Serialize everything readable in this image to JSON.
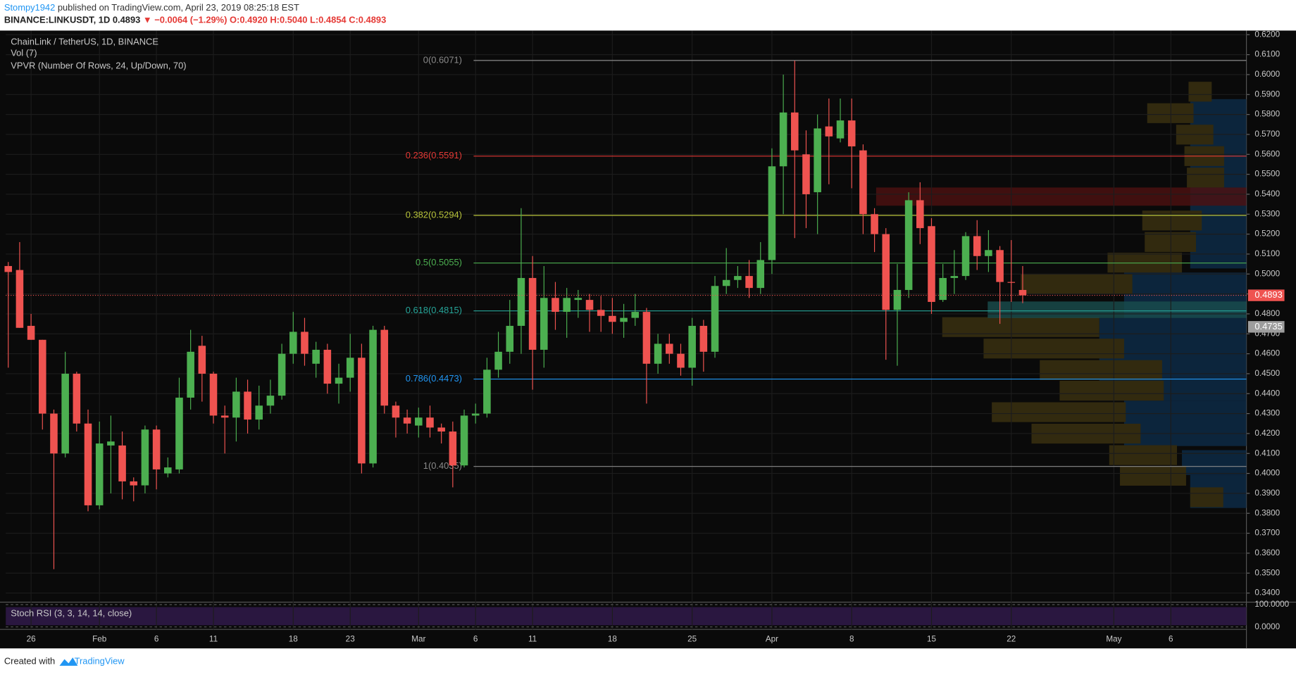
{
  "header": {
    "author": "Stompy1942",
    "published": "published on TradingView.com, April 23, 2019 08:25:18 EST",
    "symbol": "BINANCE:LINKUSDT, 1D",
    "last": "0.4893",
    "change": "▼ −0.0064 (−1.29%)",
    "open": "O:0.4920",
    "high": "H:0.5040",
    "low": "L:0.4854",
    "close": "C:0.4893"
  },
  "chart_data": {
    "type": "candlestick",
    "title": "ChainLink / TetherUS, 1D, BINANCE",
    "indicators": [
      "Vol (7)",
      "VPVR (Number Of Rows, 24, Up/Down, 70)"
    ],
    "up_color": "#4caf50",
    "down_color": "#ef5350",
    "grid": true,
    "categories": [
      null,
      null,
      "26",
      null,
      null,
      null,
      null,
      null,
      "Feb",
      null,
      null,
      null,
      null,
      "6",
      null,
      null,
      null,
      null,
      "11",
      null,
      null,
      null,
      null,
      null,
      null,
      "18",
      null,
      null,
      null,
      null,
      "23",
      null,
      null,
      null,
      null,
      null,
      "Mar",
      null,
      null,
      null,
      null,
      "6",
      null,
      null,
      null,
      null,
      "11",
      null,
      null,
      null,
      null,
      null,
      null,
      "18",
      null,
      null,
      null,
      null,
      null,
      null,
      "25",
      null,
      null,
      null,
      null,
      null,
      null,
      "Apr",
      null,
      null,
      null,
      null,
      null,
      null,
      "8",
      null,
      null,
      null,
      null,
      null,
      null,
      "15",
      null,
      null,
      null,
      null,
      null,
      null,
      "22",
      null,
      null,
      null,
      null,
      null,
      null,
      null,
      null,
      "May",
      null,
      null,
      null,
      null,
      "6",
      null,
      null,
      null,
      null,
      null
    ],
    "open": [
      0.504,
      0.502,
      0.474,
      0.467,
      0.43,
      0.41,
      0.45,
      0.425,
      0.384,
      0.414,
      0.414,
      0.396,
      0.394,
      0.422,
      0.4,
      0.402,
      0.438,
      0.464,
      0.45,
      0.429,
      0.428,
      0.441,
      0.427,
      0.434,
      0.439,
      0.46,
      0.471,
      0.455,
      0.462,
      0.445,
      0.448,
      0.458,
      0.405,
      0.472,
      0.434,
      0.428,
      0.424,
      0.428,
      0.423,
      0.421,
      0.404,
      0.429,
      0.43,
      0.452,
      0.461,
      0.474,
      0.498,
      0.462,
      0.488,
      0.481,
      0.487,
      0.487,
      0.482,
      0.479,
      0.476,
      0.478,
      0.481,
      0.455,
      0.465,
      0.46,
      0.453,
      0.474,
      0.461,
      0.494,
      0.497,
      0.499,
      0.493,
      0.507,
      0.554,
      0.581,
      0.56,
      0.541,
      0.574,
      0.568,
      0.577,
      0.562,
      0.53,
      0.52,
      0.482,
      0.492,
      0.537,
      0.524,
      0.487,
      0.498,
      0.499,
      0.519,
      0.509,
      0.512,
      0.496,
      0.492,
      null,
      null,
      null,
      null,
      null,
      null,
      null,
      null,
      null,
      null,
      null,
      null,
      null,
      null,
      null,
      null,
      null,
      null
    ],
    "high": [
      0.506,
      0.516,
      0.48,
      0.467,
      0.432,
      0.461,
      0.451,
      0.432,
      0.426,
      0.429,
      0.421,
      0.398,
      0.424,
      0.424,
      0.408,
      0.448,
      0.472,
      0.469,
      0.451,
      0.434,
      0.448,
      0.447,
      0.444,
      0.447,
      0.465,
      0.481,
      0.478,
      0.466,
      0.465,
      0.455,
      0.47,
      0.465,
      0.474,
      0.474,
      0.436,
      0.432,
      0.433,
      0.434,
      0.425,
      0.426,
      0.432,
      0.435,
      0.458,
      0.471,
      0.487,
      0.533,
      0.509,
      0.504,
      0.496,
      0.493,
      0.492,
      0.49,
      0.489,
      0.488,
      0.485,
      0.49,
      0.483,
      0.47,
      0.47,
      0.465,
      0.478,
      0.477,
      0.499,
      0.513,
      0.504,
      0.507,
      0.516,
      0.563,
      0.6,
      0.607,
      0.572,
      0.58,
      0.588,
      0.588,
      0.588,
      0.565,
      0.533,
      0.523,
      0.505,
      0.541,
      0.546,
      0.528,
      0.505,
      0.512,
      0.521,
      0.527,
      0.522,
      0.514,
      0.517,
      0.504,
      null,
      null,
      null,
      null,
      null,
      null,
      null,
      null,
      null,
      null,
      null,
      null,
      null,
      null,
      null,
      null,
      null,
      null
    ],
    "low": [
      0.453,
      0.473,
      0.467,
      0.422,
      0.352,
      0.408,
      0.421,
      0.381,
      0.382,
      0.39,
      0.387,
      0.386,
      0.39,
      0.392,
      0.398,
      0.4,
      0.432,
      0.436,
      0.425,
      0.41,
      0.416,
      0.42,
      0.422,
      0.43,
      0.437,
      0.455,
      0.454,
      0.448,
      0.44,
      0.435,
      0.441,
      0.4,
      0.403,
      0.43,
      0.418,
      0.42,
      0.418,
      0.418,
      0.415,
      0.393,
      0.403,
      0.425,
      0.428,
      0.448,
      0.455,
      0.46,
      0.442,
      0.453,
      0.472,
      0.468,
      0.478,
      0.471,
      0.471,
      0.47,
      0.468,
      0.474,
      0.435,
      0.45,
      0.455,
      0.449,
      0.444,
      0.451,
      0.458,
      0.49,
      0.493,
      0.488,
      0.49,
      0.5,
      0.53,
      0.518,
      0.523,
      0.52,
      0.545,
      0.566,
      0.543,
      0.52,
      0.511,
      0.457,
      0.454,
      0.488,
      0.515,
      0.48,
      0.486,
      0.49,
      0.497,
      0.502,
      0.501,
      0.475,
      0.486,
      0.4854,
      null,
      null,
      null,
      null,
      null,
      null,
      null,
      null,
      null,
      null,
      null,
      null,
      null,
      null,
      null,
      null,
      null,
      null
    ],
    "close": [
      0.501,
      0.473,
      0.467,
      0.43,
      0.41,
      0.45,
      0.425,
      0.384,
      0.415,
      0.416,
      0.396,
      0.394,
      0.422,
      0.402,
      0.403,
      0.438,
      0.461,
      0.45,
      0.429,
      0.428,
      0.441,
      0.427,
      0.434,
      0.439,
      0.46,
      0.471,
      0.46,
      0.462,
      0.445,
      0.448,
      0.458,
      0.405,
      0.472,
      0.434,
      0.428,
      0.425,
      0.428,
      0.423,
      0.421,
      0.404,
      0.429,
      0.43,
      0.452,
      0.461,
      0.474,
      0.498,
      0.462,
      0.488,
      0.481,
      0.488,
      0.488,
      0.482,
      0.479,
      0.476,
      0.478,
      0.481,
      0.455,
      0.465,
      0.46,
      0.453,
      0.474,
      0.461,
      0.494,
      0.497,
      0.499,
      0.493,
      0.507,
      0.554,
      0.581,
      0.562,
      0.54,
      0.573,
      0.569,
      0.577,
      0.564,
      0.53,
      0.52,
      0.482,
      0.492,
      0.537,
      0.523,
      0.486,
      0.498,
      0.499,
      0.519,
      0.509,
      0.512,
      0.496,
      0.4957,
      0.4893,
      null,
      null,
      null,
      null,
      null,
      null,
      null,
      null,
      null,
      null,
      null,
      null,
      null,
      null,
      null,
      null,
      null,
      null
    ],
    "ylim": [
      0.34,
      0.62
    ],
    "yticks": [
      {
        "value": 0.34,
        "label": "0.3400"
      },
      {
        "value": 0.35,
        "label": "0.3500"
      },
      {
        "value": 0.36,
        "label": "0.3600"
      },
      {
        "value": 0.37,
        "label": "0.3700"
      },
      {
        "value": 0.38,
        "label": "0.3800"
      },
      {
        "value": 0.39,
        "label": "0.3900"
      },
      {
        "value": 0.4,
        "label": "0.4000"
      },
      {
        "value": 0.41,
        "label": "0.4100"
      },
      {
        "value": 0.42,
        "label": "0.4200"
      },
      {
        "value": 0.43,
        "label": "0.4300"
      },
      {
        "value": 0.44,
        "label": "0.4400"
      },
      {
        "value": 0.45,
        "label": "0.4500"
      },
      {
        "value": 0.46,
        "label": "0.4600"
      },
      {
        "value": 0.47,
        "label": "0.4700"
      },
      {
        "value": 0.48,
        "label": "0.4800"
      },
      {
        "value": 0.49,
        "label": "0.4900"
      },
      {
        "value": 0.5,
        "label": "0.5000"
      },
      {
        "value": 0.51,
        "label": "0.5100"
      },
      {
        "value": 0.52,
        "label": "0.5200"
      },
      {
        "value": 0.53,
        "label": "0.5300"
      },
      {
        "value": 0.54,
        "label": "0.5400"
      },
      {
        "value": 0.55,
        "label": "0.5500"
      },
      {
        "value": 0.56,
        "label": "0.5600"
      },
      {
        "value": 0.57,
        "label": "0.5700"
      },
      {
        "value": 0.58,
        "label": "0.5800"
      },
      {
        "value": 0.59,
        "label": "0.5900"
      },
      {
        "value": 0.6,
        "label": "0.6000"
      },
      {
        "value": 0.61,
        "label": "0.6100"
      },
      {
        "value": 0.62,
        "label": "0.6200"
      }
    ],
    "last_price": 0.4893,
    "last_price_color": "#ef5350",
    "marker_price": 0.4735,
    "marker_color": "#9e9e9e",
    "fib_levels": [
      {
        "label": "0(0.6071)",
        "price": 0.6071,
        "color": "#8a8a8a"
      },
      {
        "label": "0.236(0.5591)",
        "price": 0.5591,
        "color": "#e53935"
      },
      {
        "label": "0.382(0.5294)",
        "price": 0.5294,
        "color": "#b9c43a"
      },
      {
        "label": "0.5(0.5055)",
        "price": 0.5055,
        "color": "#4caf50"
      },
      {
        "label": "0.618(0.4815)",
        "price": 0.4815,
        "color": "#26a69a"
      },
      {
        "label": "0.786(0.4473)",
        "price": 0.4473,
        "color": "#2196f3"
      },
      {
        "label": "1(0.4035)",
        "price": 0.4035,
        "color": "#8a8a8a"
      }
    ],
    "stoch": {
      "title": "Stoch RSI (3, 3, 14, 14, close)",
      "ylim": [
        0,
        100
      ],
      "yticks": [
        {
          "value": 100,
          "label": "100.0000"
        },
        {
          "value": 0,
          "label": "0.0000"
        }
      ]
    }
  },
  "footer": {
    "created": "Created with",
    "brand": "TradingView"
  }
}
